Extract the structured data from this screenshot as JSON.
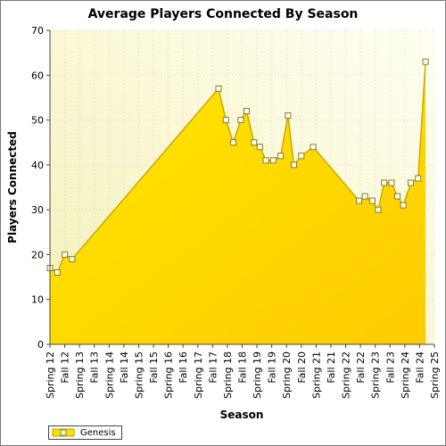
{
  "chart_data": {
    "type": "area",
    "title": "Average Players Connected By Season",
    "xlabel": "Season",
    "ylabel": "Players Connected",
    "ylim": [
      0,
      70
    ],
    "y_ticks": [
      0,
      10,
      20,
      30,
      40,
      50,
      60,
      70
    ],
    "grid": true,
    "legend_position": "bottom-left",
    "tick_labels": [
      "Spring 12",
      "Fall 12",
      "Spring 13",
      "Fall 13",
      "Spring 14",
      "Fall 14",
      "Spring 15",
      "Fall 15",
      "Spring 16",
      "Fall 16",
      "Spring 17",
      "Fall 17",
      "Spring 18",
      "Fall 18",
      "Spring 19",
      "Fall 19",
      "Spring 20",
      "Fall 20",
      "Spring 21",
      "Fall 21",
      "Spring 22",
      "Fall 22",
      "Spring 23",
      "Fall 23",
      "Spring 24",
      "Fall 24",
      "Spring 25"
    ],
    "x_range": [
      0,
      13
    ],
    "series": [
      {
        "name": "Genesis",
        "color": "#ffe100",
        "points": [
          {
            "x": 0.0,
            "y": 17
          },
          {
            "x": 0.25,
            "y": 16
          },
          {
            "x": 0.5,
            "y": 20
          },
          {
            "x": 0.75,
            "y": 19
          },
          {
            "x": 5.7,
            "y": 57
          },
          {
            "x": 5.95,
            "y": 50
          },
          {
            "x": 6.2,
            "y": 45
          },
          {
            "x": 6.45,
            "y": 50
          },
          {
            "x": 6.65,
            "y": 52
          },
          {
            "x": 6.9,
            "y": 45
          },
          {
            "x": 7.1,
            "y": 44
          },
          {
            "x": 7.3,
            "y": 41
          },
          {
            "x": 7.55,
            "y": 41
          },
          {
            "x": 7.8,
            "y": 42
          },
          {
            "x": 8.05,
            "y": 51
          },
          {
            "x": 8.25,
            "y": 40
          },
          {
            "x": 8.5,
            "y": 42
          },
          {
            "x": 8.9,
            "y": 44
          },
          {
            "x": 10.45,
            "y": 32
          },
          {
            "x": 10.65,
            "y": 33
          },
          {
            "x": 10.9,
            "y": 32
          },
          {
            "x": 11.1,
            "y": 30
          },
          {
            "x": 11.3,
            "y": 36
          },
          {
            "x": 11.55,
            "y": 36
          },
          {
            "x": 11.75,
            "y": 33
          },
          {
            "x": 11.95,
            "y": 31
          },
          {
            "x": 12.2,
            "y": 36
          },
          {
            "x": 12.45,
            "y": 37
          },
          {
            "x": 12.7,
            "y": 63
          }
        ]
      }
    ]
  }
}
